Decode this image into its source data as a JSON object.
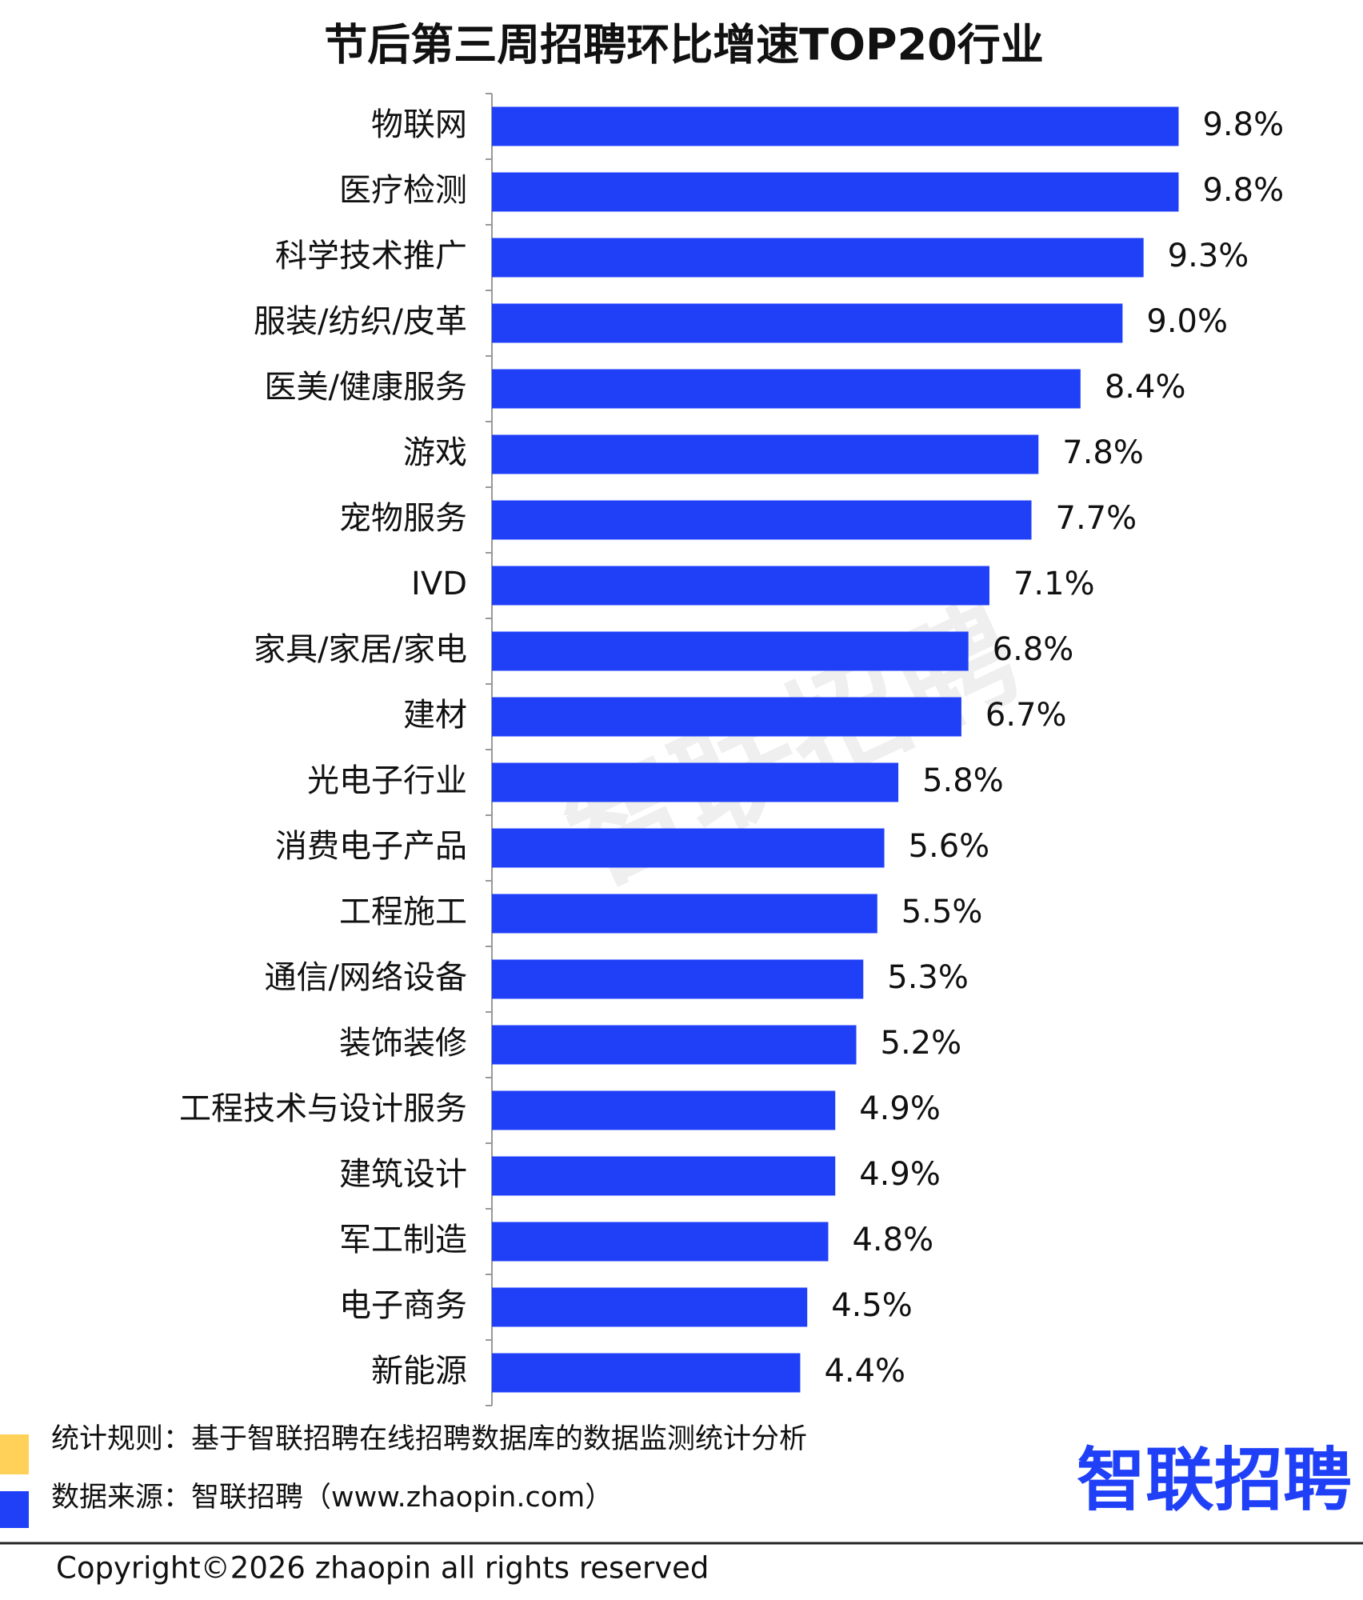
{
  "chart_data": {
    "type": "hbar",
    "title": "节后第三周招聘环比增速TOP20行业",
    "categories": [
      "物联网",
      "医疗检测",
      "科学技术推广",
      "服装/纺织/皮革",
      "医美/健康服务",
      "游戏",
      "宠物服务",
      "IVD",
      "家具/家居/家电",
      "建材",
      "光电子行业",
      "消费电子产品",
      "工程施工",
      "通信/网络设备",
      "装饰装修",
      "工程技术与设计服务",
      "建筑设计",
      "军工制造",
      "电子商务",
      "新能源"
    ],
    "values": [
      9.8,
      9.8,
      9.3,
      9.0,
      8.4,
      7.8,
      7.7,
      7.1,
      6.8,
      6.7,
      5.8,
      5.6,
      5.5,
      5.3,
      5.2,
      4.9,
      4.9,
      4.8,
      4.5,
      4.4
    ],
    "value_labels": [
      "9.8%",
      "9.8%",
      "9.3%",
      "9.0%",
      "8.4%",
      "7.8%",
      "7.7%",
      "7.1%",
      "6.8%",
      "6.7%",
      "5.8%",
      "5.6%",
      "5.5%",
      "5.3%",
      "5.2%",
      "4.9%",
      "4.9%",
      "4.8%",
      "4.5%",
      "4.4%"
    ],
    "color": "#2040f8",
    "xlim": [
      0,
      10
    ],
    "watermark": "智联招聘"
  },
  "footer": {
    "rule_note": "统计规则：基于智联招聘在线招聘数据库的数据监测统计分析",
    "source_note": "数据来源：智联招聘（www.zhaopin.com）",
    "logo": "智联招聘",
    "copyright": "Copyright©2026 zhaopin all rights reserved"
  }
}
